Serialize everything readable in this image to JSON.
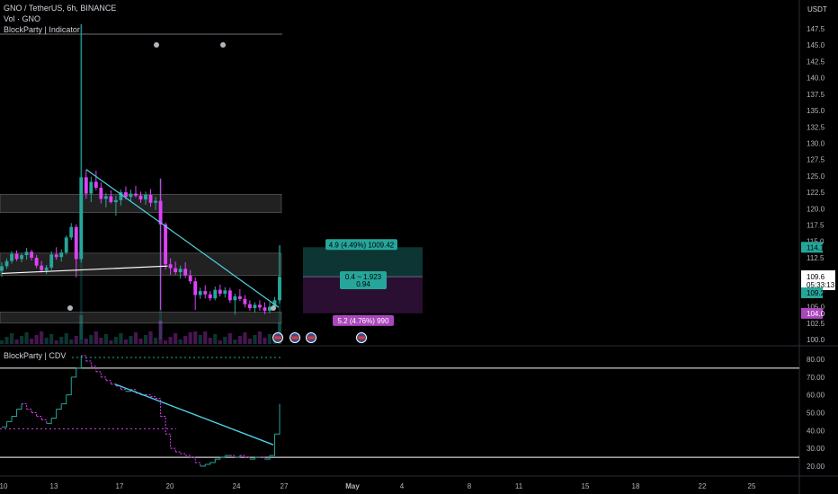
{
  "header": {
    "symbol_line": "GNO / TetherUS, 6h, BINANCE",
    "volume_line": "Vol · GNO",
    "indicator_line": "BlockParty | Indicator",
    "currency": "USDT"
  },
  "lower_pane": {
    "title": "BlockParty | CDV"
  },
  "price_labels": {
    "current_price": "109.6",
    "countdown": "05:33:13",
    "target_line": "114.1",
    "entry_line": "109.2",
    "stop_line": "104.0"
  },
  "position_tool": {
    "target_label": "4.9 (4.49%) 1009.42",
    "ratio_line1": "0.4 ~ 1.923",
    "ratio_line2": "0.94",
    "stop_label": "5.2 (4.76%) 990"
  },
  "colors": {
    "up": "#26a69a",
    "down": "#e040fb",
    "trendline": "#4dd0e1",
    "target_fill": "#0d3533",
    "stop_fill": "#2a0f33",
    "stop_tag": "#ab47bc",
    "target_tag": "#26a69a"
  },
  "chart_data": [
    {
      "type": "candlestick",
      "ylim": [
        99,
        149
      ],
      "yticks": [
        100.0,
        102.5,
        105.0,
        107.5,
        110.0,
        112.5,
        115.0,
        117.5,
        120.0,
        122.5,
        125.0,
        127.5,
        130.0,
        132.5,
        135.0,
        137.5,
        140.0,
        142.5,
        145.0,
        147.5
      ],
      "xticks": [
        "10",
        "13",
        "17",
        "20",
        "24",
        "27",
        "May",
        "4",
        "8",
        "11",
        "15",
        "18",
        "22",
        "25"
      ],
      "series": [
        {
          "name": "GNO",
          "candles": [
            [
              110.5,
              111.8,
              109.6,
              111.2
            ],
            [
              111.2,
              112.4,
              110.8,
              112.0
            ],
            [
              112.0,
              113.5,
              111.6,
              113.1
            ],
            [
              113.1,
              113.6,
              112.0,
              112.3
            ],
            [
              112.3,
              113.2,
              111.8,
              112.9
            ],
            [
              112.9,
              114.0,
              112.2,
              113.4
            ],
            [
              113.4,
              113.7,
              112.1,
              112.5
            ],
            [
              112.5,
              112.9,
              110.9,
              111.3
            ],
            [
              111.3,
              112.0,
              110.2,
              110.6
            ],
            [
              110.6,
              111.4,
              110.0,
              111.0
            ],
            [
              111.0,
              113.5,
              110.6,
              113.0
            ],
            [
              113.0,
              114.1,
              112.2,
              112.6
            ],
            [
              112.6,
              113.8,
              111.9,
              113.3
            ],
            [
              113.3,
              115.9,
              113.0,
              115.6
            ],
            [
              115.6,
              117.8,
              115.2,
              117.2
            ],
            [
              117.2,
              117.6,
              109.5,
              112.3
            ],
            [
              112.3,
              148.2,
              111.8,
              124.8
            ],
            [
              124.8,
              125.9,
              121.5,
              122.3
            ],
            [
              122.3,
              124.9,
              121.0,
              124.1
            ],
            [
              124.1,
              125.8,
              122.8,
              123.2
            ],
            [
              123.2,
              124.0,
              120.8,
              121.5
            ],
            [
              121.5,
              122.4,
              120.2,
              121.9
            ],
            [
              121.9,
              122.8,
              120.8,
              121.0
            ],
            [
              121.0,
              122.0,
              118.9,
              121.3
            ],
            [
              121.3,
              122.9,
              120.5,
              122.5
            ],
            [
              122.5,
              123.4,
              121.4,
              121.8
            ],
            [
              121.8,
              122.9,
              121.1,
              122.3
            ],
            [
              122.3,
              123.5,
              121.7,
              122.0
            ],
            [
              122.0,
              122.6,
              120.9,
              121.4
            ],
            [
              121.4,
              122.6,
              120.6,
              122.1
            ],
            [
              122.1,
              123.0,
              120.3,
              120.9
            ],
            [
              120.9,
              121.8,
              119.8,
              121.2
            ],
            [
              121.2,
              124.6,
              104.5,
              117.6
            ],
            [
              117.6,
              117.9,
              110.7,
              111.5
            ],
            [
              111.5,
              112.4,
              109.9,
              110.9
            ],
            [
              110.9,
              111.9,
              109.9,
              110.3
            ],
            [
              110.3,
              111.3,
              109.3,
              110.8
            ],
            [
              110.8,
              111.8,
              109.4,
              109.8
            ],
            [
              109.8,
              110.6,
              108.5,
              108.9
            ],
            [
              108.9,
              109.5,
              104.5,
              106.8
            ],
            [
              106.8,
              107.9,
              106.2,
              107.4
            ],
            [
              107.4,
              108.3,
              106.3,
              106.9
            ],
            [
              106.9,
              107.4,
              105.9,
              106.3
            ],
            [
              106.3,
              108.1,
              106.0,
              107.6
            ],
            [
              107.6,
              108.4,
              106.6,
              107.0
            ],
            [
              107.0,
              108.0,
              106.4,
              107.5
            ],
            [
              107.5,
              107.9,
              105.6,
              106.0
            ],
            [
              106.0,
              107.0,
              103.8,
              106.6
            ],
            [
              106.6,
              107.7,
              105.9,
              106.2
            ],
            [
              106.2,
              106.8,
              104.9,
              105.4
            ],
            [
              105.4,
              106.0,
              104.4,
              104.8
            ],
            [
              104.8,
              105.7,
              104.1,
              105.3
            ],
            [
              105.3,
              106.0,
              104.4,
              104.9
            ],
            [
              104.9,
              105.7,
              103.9,
              104.4
            ],
            [
              104.4,
              105.7,
              104.0,
              105.0
            ],
            [
              105.0,
              106.5,
              104.5,
              106.0
            ],
            [
              106.0,
              114.4,
              105.5,
              109.6
            ]
          ]
        }
      ],
      "trendlines": [
        {
          "from": [
            17,
            126
          ],
          "to": [
            54,
            104.5
          ]
        },
        {
          "from": [
            0,
            110.1
          ],
          "to": [
            28,
            111.3
          ]
        }
      ],
      "zones": [
        {
          "low": 119.4,
          "high": 122.2
        },
        {
          "low": 109.8,
          "high": 113.2
        },
        {
          "low": 102.5,
          "high": 104.2
        }
      ]
    },
    {
      "type": "line",
      "title": "BlockParty | CDV",
      "ylim": [
        15,
        85
      ],
      "yticks": [
        20.0,
        30.0,
        40.0,
        50.0,
        60.0,
        70.0,
        80.0
      ],
      "series": [
        {
          "name": "CDV",
          "values": [
            42,
            45,
            48,
            52,
            55,
            52,
            50,
            48,
            46,
            44,
            47,
            52,
            55,
            60,
            70,
            75,
            82,
            79,
            76,
            73,
            70,
            68,
            66,
            65,
            63,
            62,
            63,
            61,
            60,
            60,
            59,
            58,
            48,
            38,
            30,
            28,
            27,
            26,
            25,
            22,
            20,
            21,
            22,
            24,
            25,
            26,
            26,
            25,
            26,
            25,
            24,
            25,
            25,
            24,
            26,
            38,
            55
          ]
        }
      ],
      "reference_levels": [
        81,
        75,
        25,
        41
      ]
    }
  ]
}
